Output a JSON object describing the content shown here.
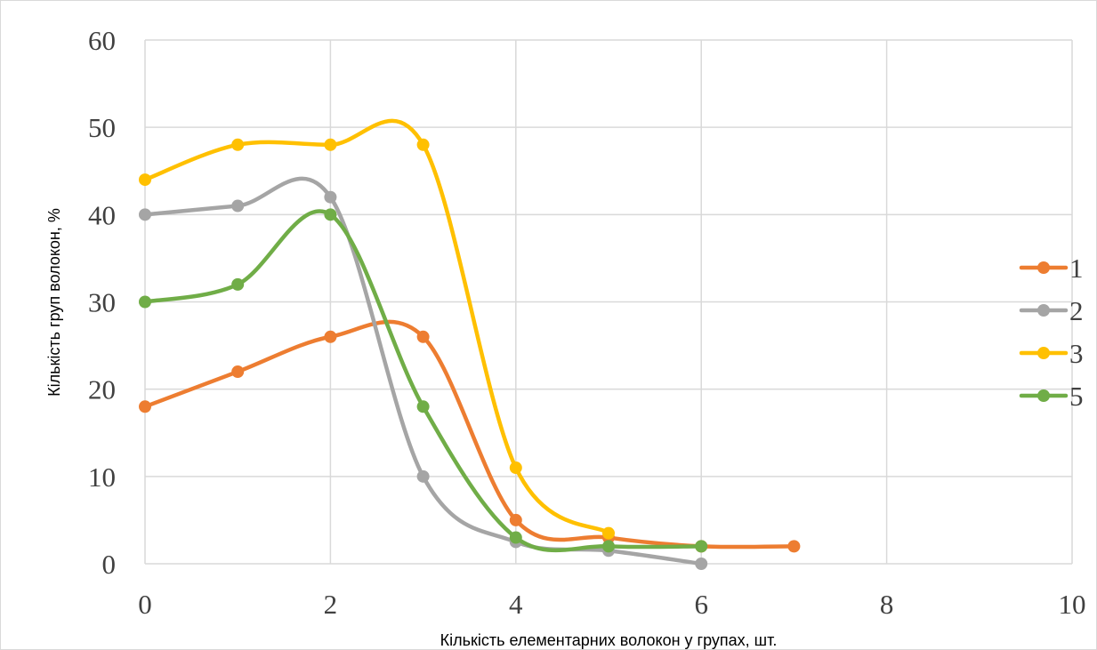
{
  "chart_data": {
    "type": "line",
    "title": "",
    "xlabel": "Кількість елементарних волокон у групах, шт.",
    "ylabel": "Кількість  груп волокон, %",
    "xlim": [
      0,
      10
    ],
    "ylim": [
      0,
      60
    ],
    "x_ticks": [
      0,
      2,
      4,
      6,
      8,
      10
    ],
    "y_ticks": [
      0,
      10,
      20,
      30,
      40,
      50,
      60
    ],
    "grid": true,
    "smooth": true,
    "legend_position": "right",
    "series": [
      {
        "name": "1",
        "color": "#ED7D31",
        "x": [
          0,
          1,
          2,
          3,
          4,
          5,
          6,
          7
        ],
        "y": [
          18,
          22,
          26,
          26,
          5,
          3,
          2,
          2
        ]
      },
      {
        "name": "2",
        "color": "#A5A5A5",
        "x": [
          0,
          1,
          2,
          3,
          4,
          5,
          6
        ],
        "y": [
          40,
          41,
          42,
          10,
          2.5,
          1.5,
          0
        ]
      },
      {
        "name": "3",
        "color": "#FFC000",
        "x": [
          0,
          1,
          2,
          3,
          4,
          5
        ],
        "y": [
          44,
          48,
          48,
          48,
          11,
          3.5
        ]
      },
      {
        "name": "5",
        "color": "#70AD47",
        "x": [
          0,
          1,
          2,
          3,
          4,
          5,
          6
        ],
        "y": [
          30,
          32,
          40,
          18,
          3,
          2,
          2
        ]
      }
    ]
  }
}
